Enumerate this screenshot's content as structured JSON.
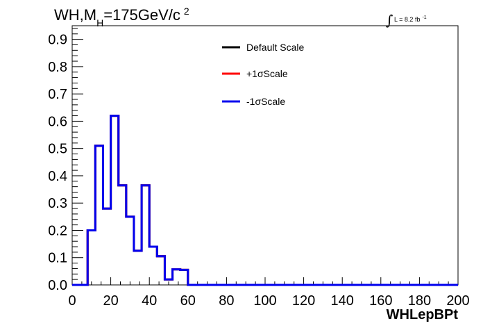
{
  "title": {
    "main": "WH,M",
    "subscript": "H",
    "rest": "=175GeV/c",
    "superscript": "2"
  },
  "luminosity": {
    "integral_symbol": "∫",
    "text": "L = 8.2 fb",
    "superscript": "-1"
  },
  "chart_data": {
    "type": "line",
    "xlabel": "WHLepBPt",
    "ylabel": "",
    "xlim": [
      0,
      200
    ],
    "ylim": [
      0,
      0.95
    ],
    "x_ticks": [
      "0",
      "20",
      "40",
      "60",
      "80",
      "100",
      "120",
      "140",
      "160",
      "180",
      "200"
    ],
    "y_ticks": [
      "0.0",
      "0.1",
      "0.2",
      "0.3",
      "0.4",
      "0.5",
      "0.6",
      "0.7",
      "0.8",
      "0.9"
    ],
    "bin_width": 4,
    "bin_edges_start": 0,
    "legend_position": "top-center",
    "grid": false,
    "series": [
      {
        "name": "Default Scale",
        "color": "#000000",
        "values": [
          0,
          0,
          0.2,
          0.51,
          0.28,
          0.62,
          0.365,
          0.25,
          0.125,
          0.365,
          0.14,
          0.105,
          0.02,
          0.057,
          0.055,
          0,
          0,
          0,
          0,
          0,
          0,
          0,
          0,
          0,
          0,
          0,
          0,
          0,
          0,
          0,
          0,
          0,
          0,
          0,
          0,
          0,
          0,
          0,
          0,
          0,
          0,
          0,
          0,
          0,
          0,
          0,
          0,
          0,
          0,
          0
        ]
      },
      {
        "name": "+1σScale",
        "color": "#ff0000",
        "values": [
          0,
          0,
          0.2,
          0.51,
          0.28,
          0.62,
          0.365,
          0.25,
          0.125,
          0.365,
          0.14,
          0.105,
          0.02,
          0.057,
          0.055,
          0,
          0,
          0,
          0,
          0,
          0,
          0,
          0,
          0,
          0,
          0,
          0,
          0,
          0,
          0,
          0,
          0,
          0,
          0,
          0,
          0,
          0,
          0,
          0,
          0,
          0,
          0,
          0,
          0,
          0,
          0,
          0,
          0,
          0,
          0
        ]
      },
      {
        "name": "-1σScale",
        "color": "#0000ee",
        "values": [
          0,
          0,
          0.2,
          0.51,
          0.28,
          0.62,
          0.365,
          0.25,
          0.125,
          0.365,
          0.14,
          0.105,
          0.02,
          0.057,
          0.055,
          0,
          0,
          0,
          0,
          0,
          0,
          0,
          0,
          0,
          0,
          0,
          0,
          0,
          0,
          0,
          0,
          0,
          0,
          0,
          0,
          0,
          0,
          0,
          0,
          0,
          0,
          0,
          0,
          0,
          0,
          0,
          0,
          0,
          0,
          0
        ]
      }
    ]
  }
}
